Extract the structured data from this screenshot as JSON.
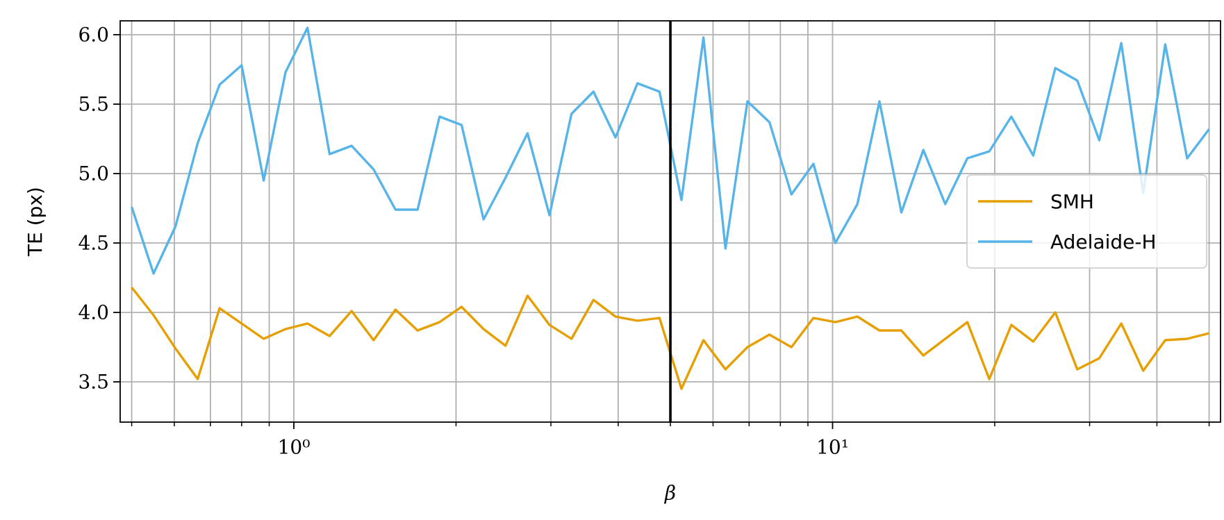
{
  "chart_data": {
    "type": "line",
    "xlabel": "β",
    "ylabel": "TE (px)",
    "x": [
      0.5,
      0.549,
      0.603,
      0.663,
      0.728,
      0.8,
      0.879,
      0.965,
      1.06,
      1.165,
      1.28,
      1.406,
      1.544,
      1.697,
      1.864,
      2.048,
      2.25,
      2.471,
      2.715,
      2.982,
      3.276,
      3.599,
      3.954,
      4.344,
      4.772,
      5.242,
      5.759,
      6.327,
      6.95,
      7.635,
      8.388,
      9.214,
      10.12,
      11.12,
      12.22,
      13.42,
      14.74,
      16.19,
      17.79,
      19.54,
      21.47,
      23.58,
      25.91,
      28.46,
      31.27,
      34.35,
      37.73,
      41.45,
      45.52,
      50.0
    ],
    "series": [
      {
        "name": "SMH",
        "color": "#e69f00",
        "values": [
          4.18,
          3.98,
          3.74,
          3.52,
          4.03,
          3.92,
          3.81,
          3.88,
          3.92,
          3.83,
          4.01,
          3.8,
          4.02,
          3.87,
          3.93,
          4.04,
          3.88,
          3.76,
          4.12,
          3.91,
          3.81,
          4.09,
          3.97,
          3.94,
          3.96,
          3.45,
          3.8,
          3.59,
          3.75,
          3.84,
          3.75,
          3.96,
          3.93,
          3.97,
          3.87,
          3.87,
          3.69,
          3.81,
          3.93,
          3.52,
          3.91,
          3.79,
          4.0,
          3.59,
          3.67,
          3.92,
          3.58,
          3.8,
          3.81,
          3.85
        ]
      },
      {
        "name": "Adelaide-H",
        "color": "#56b4e9",
        "values": [
          4.76,
          4.28,
          4.62,
          5.22,
          5.64,
          5.78,
          4.95,
          5.73,
          6.05,
          5.14,
          5.2,
          5.03,
          4.74,
          4.74,
          5.41,
          5.35,
          4.67,
          4.97,
          5.29,
          4.7,
          5.43,
          5.59,
          5.26,
          5.65,
          5.59,
          4.81,
          5.98,
          4.46,
          5.52,
          5.37,
          4.85,
          5.07,
          4.5,
          4.78,
          5.52,
          4.72,
          5.17,
          4.78,
          5.11,
          5.16,
          5.41,
          5.13,
          5.76,
          5.67,
          5.24,
          5.94,
          4.86,
          5.93,
          5.11,
          5.32
        ]
      }
    ],
    "xscale": "log",
    "xlim": [
      0.476,
      52.5
    ],
    "xticks": [
      {
        "value": 1,
        "label": "10⁰"
      },
      {
        "value": 10,
        "label": "10¹"
      }
    ],
    "xminorticks": [
      0.5,
      0.6,
      0.7,
      0.8,
      0.9,
      2,
      3,
      4,
      5,
      6,
      7,
      8,
      9,
      20,
      30,
      40,
      50
    ],
    "ylim": [
      3.21,
      6.1
    ],
    "yticks": [
      {
        "value": 3.5,
        "label": "3.5"
      },
      {
        "value": 4,
        "label": "4.0"
      },
      {
        "value": 4.5,
        "label": "4.5"
      },
      {
        "value": 5,
        "label": "5.0"
      },
      {
        "value": 5.5,
        "label": "5.5"
      },
      {
        "value": 6,
        "label": "6.0"
      }
    ],
    "vline": 5,
    "vline_color": "#000000",
    "grid": true,
    "legend": "center right"
  }
}
